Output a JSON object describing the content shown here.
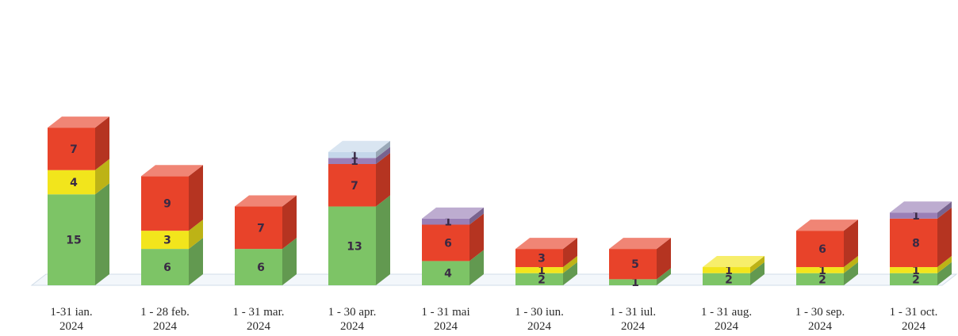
{
  "chart_data": {
    "type": "bar",
    "stacked": true,
    "three_d": true,
    "grid": false,
    "legend": "none",
    "title": "",
    "xlabel": "",
    "ylabel": "",
    "ylim": [
      0,
      27
    ],
    "categories": [
      [
        "1-31 ian.",
        "2024"
      ],
      [
        "1 - 28 feb.",
        "2024"
      ],
      [
        "1 - 31 mar.",
        "2024"
      ],
      [
        "1 - 30 apr.",
        "2024"
      ],
      [
        "1 - 31 mai",
        "2024"
      ],
      [
        "1 - 30 iun.",
        "2024"
      ],
      [
        "1 - 31 iul.",
        "2024"
      ],
      [
        "1 - 31 aug.",
        "2024"
      ],
      [
        "1 - 30 sep.",
        "2024"
      ],
      [
        "1 - 31 oct.",
        "2024"
      ]
    ],
    "series": [
      {
        "color": "#7dc466",
        "values": [
          15,
          6,
          6,
          13,
          4,
          2,
          1,
          2,
          2,
          2
        ]
      },
      {
        "color": "#f2e51c",
        "values": [
          4,
          3,
          0,
          0,
          0,
          1,
          0,
          1,
          1,
          1
        ]
      },
      {
        "color": "#e8432a",
        "values": [
          7,
          9,
          7,
          7,
          6,
          3,
          5,
          0,
          6,
          8
        ]
      },
      {
        "color": "#9a7fb6",
        "values": [
          0,
          0,
          0,
          1,
          1,
          0,
          0,
          0,
          0,
          1
        ]
      },
      {
        "color": "#c4d7ea",
        "values": [
          0,
          0,
          0,
          1,
          0,
          0,
          0,
          0,
          0,
          0
        ]
      }
    ]
  }
}
